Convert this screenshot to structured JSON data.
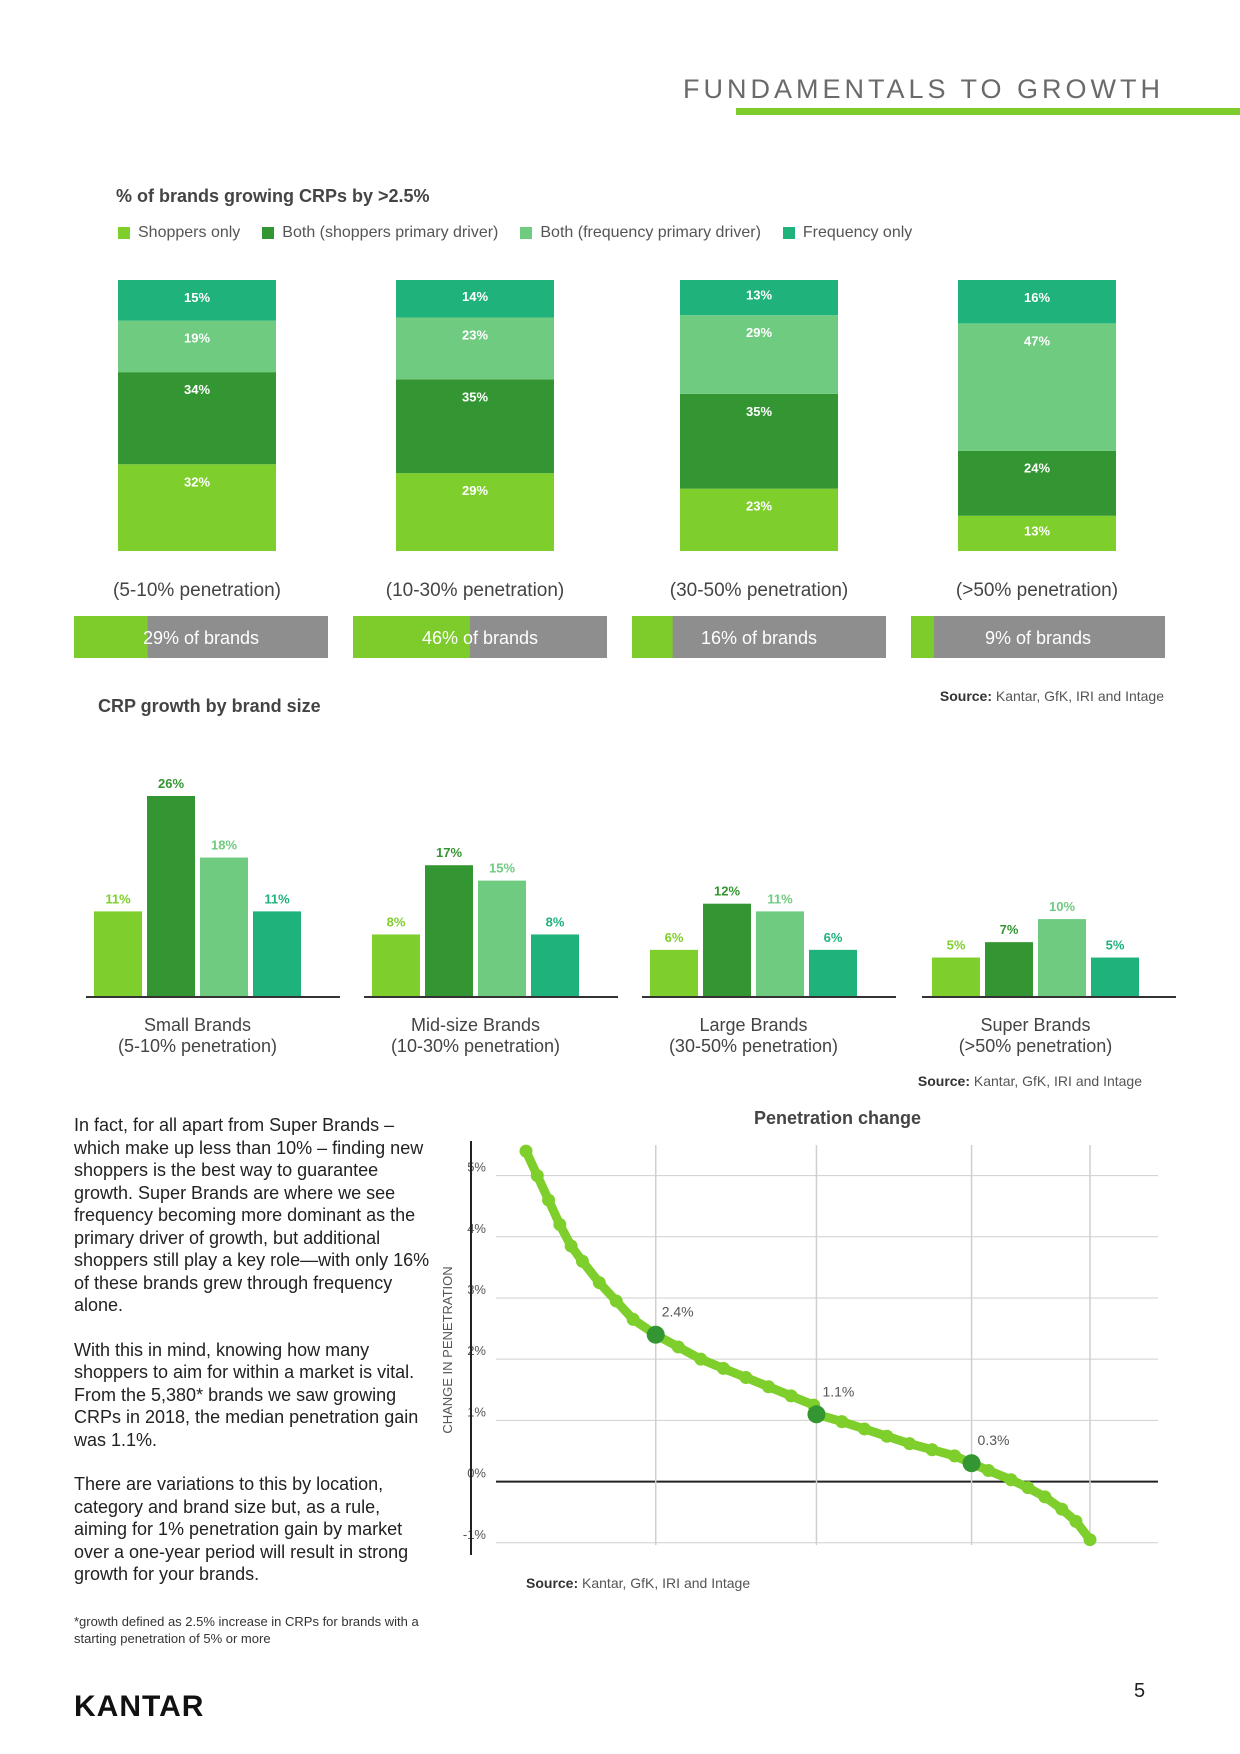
{
  "header": {
    "title": "FUNDAMENTALS TO GROWTH"
  },
  "colors": {
    "shoppers_only": "#7ecf2c",
    "both_shoppers": "#349632",
    "both_frequency": "#6fcb80",
    "frequency_only": "#1fb27b",
    "grey": "#8e8e8e",
    "accent": "#7ecb2c"
  },
  "chart1_title": "% of brands growing CRPs by >2.5%",
  "legend": [
    {
      "label": "Shoppers only",
      "color": "#7ecf2c"
    },
    {
      "label": "Both (shoppers primary driver)",
      "color": "#349632"
    },
    {
      "label": "Both (frequency primary driver)",
      "color": "#6fcb80"
    },
    {
      "label": "Frequency only",
      "color": "#1fb27b"
    }
  ],
  "chart2_title": "CRP growth by brand size",
  "chart3_title": "Penetration change",
  "source_label": "Source:",
  "source_text": "Kantar, GfK, IRI and Intage",
  "body": {
    "p1": "In fact, for all apart from Super Brands – which make up less than 10% – finding new shoppers is the best way to guarantee growth. Super Brands are where we see frequency becoming more dominant as the primary driver of growth, but additional shoppers still play a key role—with only 16% of these brands grew through frequency alone.",
    "p2": "With this in mind, knowing how many shoppers to aim for within a market is vital. From the 5,380* brands we saw growing CRPs in 2018, the median penetration gain was 1.1%.",
    "p3": "There are variations to this by location, category and brand size but, as a rule, aiming for 1% penetration gain by market over a one-year period will result in strong growth for your brands."
  },
  "footnote": "*growth defined as 2.5% increase in CRPs for brands with a starting penetration of 5% or more",
  "logo": "KANTAR",
  "page_number": "5",
  "chart_data": [
    {
      "type": "bar",
      "stacked": true,
      "title": "% of brands growing CRPs by >2.5%",
      "categories": [
        "(5-10% penetration)",
        "(10-30% penetration)",
        "(30-50% penetration)",
        "(>50% penetration)"
      ],
      "series": [
        {
          "name": "Shoppers only",
          "values": [
            32,
            29,
            23,
            13
          ]
        },
        {
          "name": "Both (shoppers primary driver)",
          "values": [
            34,
            35,
            35,
            24
          ]
        },
        {
          "name": "Both (frequency primary driver)",
          "values": [
            19,
            23,
            29,
            47
          ]
        },
        {
          "name": "Frequency only",
          "values": [
            15,
            14,
            13,
            16
          ]
        }
      ],
      "labels": [
        [
          "32%",
          "34%",
          "19%",
          "15%"
        ],
        [
          "29%",
          "35%",
          "23%",
          "14%"
        ],
        [
          "23%",
          "35%",
          "29%",
          "13%"
        ],
        [
          "13%",
          "24%",
          "47%",
          "16%"
        ]
      ],
      "share_of_brands": {
        "values": [
          29,
          46,
          16,
          9
        ],
        "labels": [
          "29% of brands",
          "46% of brands",
          "16% of brands",
          "9% of brands"
        ]
      },
      "legend_position": "top-left"
    },
    {
      "type": "bar",
      "title": "CRP growth by brand size",
      "categories": [
        "Small Brands|(5-10% penetration)",
        "Mid-size Brands|(10-30% penetration)",
        "Large Brands|(30-50% penetration)",
        "Super Brands|(>50% penetration)"
      ],
      "series": [
        {
          "name": "Shoppers only",
          "values": [
            11,
            8,
            6,
            5
          ]
        },
        {
          "name": "Both (shoppers primary driver)",
          "values": [
            26,
            17,
            12,
            7
          ]
        },
        {
          "name": "Both (frequency primary driver)",
          "values": [
            18,
            15,
            11,
            10
          ]
        },
        {
          "name": "Frequency only",
          "values": [
            11,
            8,
            6,
            5
          ]
        }
      ],
      "labels": [
        [
          "11%",
          "26%",
          "18%",
          "11%"
        ],
        [
          "8%",
          "17%",
          "15%",
          "8%"
        ],
        [
          "6%",
          "12%",
          "11%",
          "6%"
        ],
        [
          "5%",
          "7%",
          "10%",
          "5%"
        ]
      ],
      "ylim": [
        0,
        26
      ]
    },
    {
      "type": "line",
      "title": "Penetration change",
      "ylabel": "CHANGE IN PENETRATION",
      "ylim": [
        -1.2,
        5.5
      ],
      "xlim": [
        0,
        1
      ],
      "yticks": [
        {
          "v": -1,
          "label": "-1%"
        },
        {
          "v": 0,
          "label": "0%"
        },
        {
          "v": 1,
          "label": "1%"
        },
        {
          "v": 2,
          "label": "2%"
        },
        {
          "v": 3,
          "label": "3%"
        },
        {
          "v": 4,
          "label": "4%"
        },
        {
          "v": 5,
          "label": "5%"
        }
      ],
      "grid": true,
      "points": [
        [
          0.0,
          5.4
        ],
        [
          0.02,
          5.0
        ],
        [
          0.04,
          4.6
        ],
        [
          0.06,
          4.2
        ],
        [
          0.08,
          3.85
        ],
        [
          0.1,
          3.6
        ],
        [
          0.13,
          3.25
        ],
        [
          0.16,
          2.95
        ],
        [
          0.19,
          2.65
        ],
        [
          0.23,
          2.4
        ],
        [
          0.27,
          2.2
        ],
        [
          0.31,
          2.0
        ],
        [
          0.35,
          1.85
        ],
        [
          0.39,
          1.7
        ],
        [
          0.43,
          1.55
        ],
        [
          0.47,
          1.4
        ],
        [
          0.51,
          1.25
        ],
        [
          0.515,
          1.1
        ],
        [
          0.56,
          0.98
        ],
        [
          0.6,
          0.86
        ],
        [
          0.64,
          0.74
        ],
        [
          0.68,
          0.62
        ],
        [
          0.72,
          0.52
        ],
        [
          0.76,
          0.42
        ],
        [
          0.79,
          0.3
        ],
        [
          0.82,
          0.18
        ],
        [
          0.86,
          0.03
        ],
        [
          0.89,
          -0.1
        ],
        [
          0.92,
          -0.25
        ],
        [
          0.95,
          -0.45
        ],
        [
          0.975,
          -0.65
        ],
        [
          1.0,
          -0.95
        ]
      ],
      "highlights": [
        {
          "x": 0.23,
          "y": 2.4,
          "label": "2.4%"
        },
        {
          "x": 0.515,
          "y": 1.1,
          "label": "1.1%"
        },
        {
          "x": 0.79,
          "y": 0.3,
          "label": "0.3%"
        }
      ],
      "vertical_gridlines": [
        0.23,
        0.515,
        0.79,
        1.0
      ]
    }
  ]
}
